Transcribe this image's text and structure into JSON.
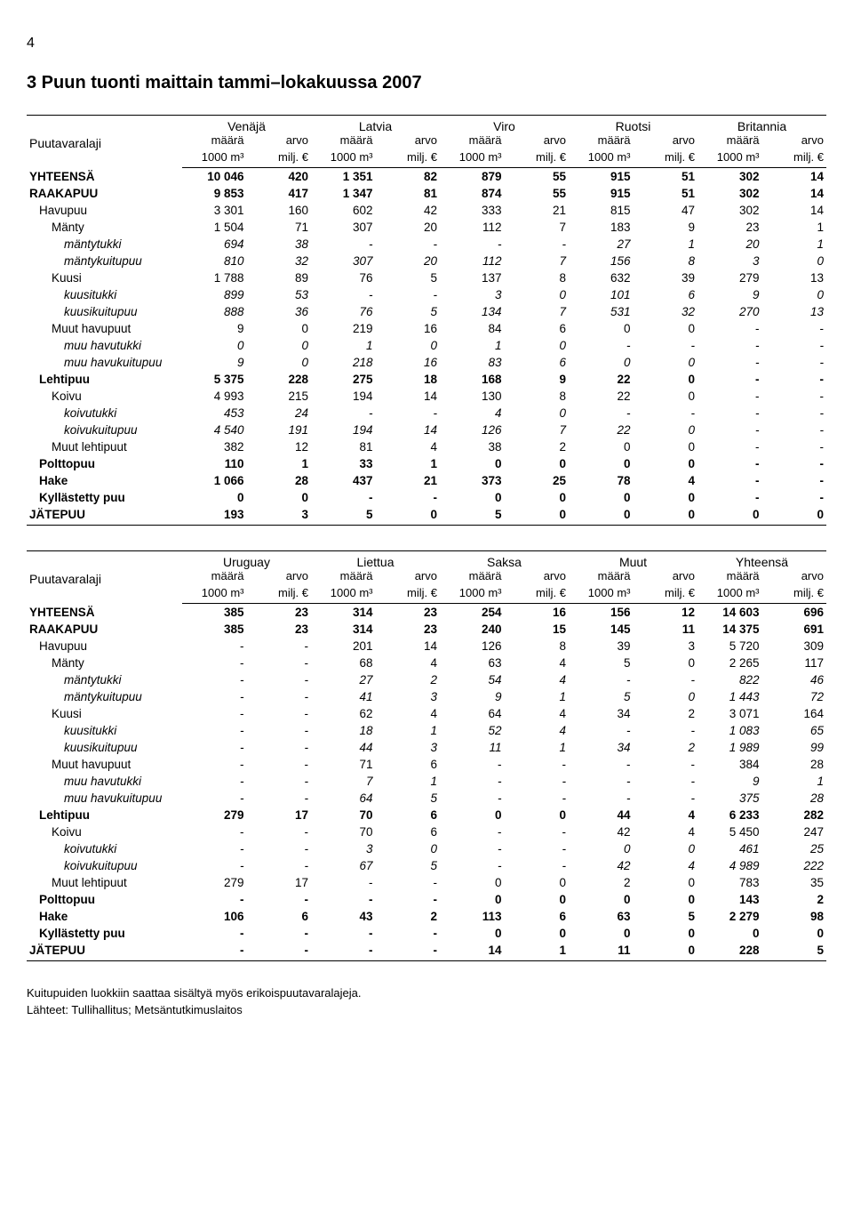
{
  "page_number": "4",
  "title": "3 Puun tuonti maittain tammi–lokakuussa 2007",
  "corner_label": "Puutavaralaji",
  "sub_headers": {
    "maara": "määrä",
    "arvo": "arvo",
    "unit_m3": "1000 m³",
    "unit_milj": "milj. €"
  },
  "tables": [
    {
      "countries": [
        "Venäjä",
        "Latvia",
        "Viro",
        "Ruotsi",
        "Britannia"
      ],
      "rows": [
        {
          "label": "YHTEENSÄ",
          "indent": 0,
          "style": "bold",
          "v": [
            "10 046",
            "420",
            "1 351",
            "82",
            "879",
            "55",
            "915",
            "51",
            "302",
            "14"
          ]
        },
        {
          "label": "RAAKAPUU",
          "indent": 0,
          "style": "bold",
          "v": [
            "9 853",
            "417",
            "1 347",
            "81",
            "874",
            "55",
            "915",
            "51",
            "302",
            "14"
          ]
        },
        {
          "label": "Havupuu",
          "indent": 1,
          "style": "",
          "v": [
            "3 301",
            "160",
            "602",
            "42",
            "333",
            "21",
            "815",
            "47",
            "302",
            "14"
          ]
        },
        {
          "label": "Mänty",
          "indent": 2,
          "style": "",
          "v": [
            "1 504",
            "71",
            "307",
            "20",
            "112",
            "7",
            "183",
            "9",
            "23",
            "1"
          ]
        },
        {
          "label": "mäntytukki",
          "indent": 3,
          "style": "italic",
          "v": [
            "694",
            "38",
            "-",
            "-",
            "-",
            "-",
            "27",
            "1",
            "20",
            "1"
          ]
        },
        {
          "label": "mäntykuitupuu",
          "indent": 3,
          "style": "italic",
          "v": [
            "810",
            "32",
            "307",
            "20",
            "112",
            "7",
            "156",
            "8",
            "3",
            "0"
          ]
        },
        {
          "label": "Kuusi",
          "indent": 2,
          "style": "",
          "v": [
            "1 788",
            "89",
            "76",
            "5",
            "137",
            "8",
            "632",
            "39",
            "279",
            "13"
          ]
        },
        {
          "label": "kuusitukki",
          "indent": 3,
          "style": "italic",
          "v": [
            "899",
            "53",
            "-",
            "-",
            "3",
            "0",
            "101",
            "6",
            "9",
            "0"
          ]
        },
        {
          "label": "kuusikuitupuu",
          "indent": 3,
          "style": "italic",
          "v": [
            "888",
            "36",
            "76",
            "5",
            "134",
            "7",
            "531",
            "32",
            "270",
            "13"
          ]
        },
        {
          "label": "Muut havupuut",
          "indent": 2,
          "style": "",
          "v": [
            "9",
            "0",
            "219",
            "16",
            "84",
            "6",
            "0",
            "0",
            "-",
            "-"
          ]
        },
        {
          "label": "muu havutukki",
          "indent": 3,
          "style": "italic",
          "v": [
            "0",
            "0",
            "1",
            "0",
            "1",
            "0",
            "-",
            "-",
            "-",
            "-"
          ]
        },
        {
          "label": "muu havukuitupuu",
          "indent": 3,
          "style": "italic",
          "v": [
            "9",
            "0",
            "218",
            "16",
            "83",
            "6",
            "0",
            "0",
            "-",
            "-"
          ]
        },
        {
          "label": "Lehtipuu",
          "indent": 1,
          "style": "bold",
          "v": [
            "5 375",
            "228",
            "275",
            "18",
            "168",
            "9",
            "22",
            "0",
            "-",
            "-"
          ]
        },
        {
          "label": "Koivu",
          "indent": 2,
          "style": "",
          "v": [
            "4 993",
            "215",
            "194",
            "14",
            "130",
            "8",
            "22",
            "0",
            "-",
            "-"
          ]
        },
        {
          "label": "koivutukki",
          "indent": 3,
          "style": "italic",
          "v": [
            "453",
            "24",
            "-",
            "-",
            "4",
            "0",
            "-",
            "-",
            "-",
            "-"
          ]
        },
        {
          "label": "koivukuitupuu",
          "indent": 3,
          "style": "italic",
          "v": [
            "4 540",
            "191",
            "194",
            "14",
            "126",
            "7",
            "22",
            "0",
            "-",
            "-"
          ]
        },
        {
          "label": "Muut lehtipuut",
          "indent": 2,
          "style": "",
          "v": [
            "382",
            "12",
            "81",
            "4",
            "38",
            "2",
            "0",
            "0",
            "-",
            "-"
          ]
        },
        {
          "label": "Polttopuu",
          "indent": 1,
          "style": "bold",
          "v": [
            "110",
            "1",
            "33",
            "1",
            "0",
            "0",
            "0",
            "0",
            "-",
            "-"
          ]
        },
        {
          "label": "Hake",
          "indent": 1,
          "style": "bold",
          "v": [
            "1 066",
            "28",
            "437",
            "21",
            "373",
            "25",
            "78",
            "4",
            "-",
            "-"
          ]
        },
        {
          "label": "Kyllästetty puu",
          "indent": 1,
          "style": "bold",
          "v": [
            "0",
            "0",
            "-",
            "-",
            "0",
            "0",
            "0",
            "0",
            "-",
            "-"
          ]
        },
        {
          "label": "JÄTEPUU",
          "indent": 0,
          "style": "bold",
          "v": [
            "193",
            "3",
            "5",
            "0",
            "5",
            "0",
            "0",
            "0",
            "0",
            "0"
          ]
        }
      ]
    },
    {
      "countries": [
        "Uruguay",
        "Liettua",
        "Saksa",
        "Muut",
        "Yhteensä"
      ],
      "rows": [
        {
          "label": "YHTEENSÄ",
          "indent": 0,
          "style": "bold",
          "v": [
            "385",
            "23",
            "314",
            "23",
            "254",
            "16",
            "156",
            "12",
            "14 603",
            "696"
          ]
        },
        {
          "label": "RAAKAPUU",
          "indent": 0,
          "style": "bold",
          "v": [
            "385",
            "23",
            "314",
            "23",
            "240",
            "15",
            "145",
            "11",
            "14 375",
            "691"
          ]
        },
        {
          "label": "Havupuu",
          "indent": 1,
          "style": "",
          "v": [
            "-",
            "-",
            "201",
            "14",
            "126",
            "8",
            "39",
            "3",
            "5 720",
            "309"
          ]
        },
        {
          "label": "Mänty",
          "indent": 2,
          "style": "",
          "v": [
            "-",
            "-",
            "68",
            "4",
            "63",
            "4",
            "5",
            "0",
            "2 265",
            "117"
          ]
        },
        {
          "label": "mäntytukki",
          "indent": 3,
          "style": "italic",
          "v": [
            "-",
            "-",
            "27",
            "2",
            "54",
            "4",
            "-",
            "-",
            "822",
            "46"
          ]
        },
        {
          "label": "mäntykuitupuu",
          "indent": 3,
          "style": "italic",
          "v": [
            "-",
            "-",
            "41",
            "3",
            "9",
            "1",
            "5",
            "0",
            "1 443",
            "72"
          ]
        },
        {
          "label": "Kuusi",
          "indent": 2,
          "style": "",
          "v": [
            "-",
            "-",
            "62",
            "4",
            "64",
            "4",
            "34",
            "2",
            "3 071",
            "164"
          ]
        },
        {
          "label": "kuusitukki",
          "indent": 3,
          "style": "italic",
          "v": [
            "-",
            "-",
            "18",
            "1",
            "52",
            "4",
            "-",
            "-",
            "1 083",
            "65"
          ]
        },
        {
          "label": "kuusikuitupuu",
          "indent": 3,
          "style": "italic",
          "v": [
            "-",
            "-",
            "44",
            "3",
            "11",
            "1",
            "34",
            "2",
            "1 989",
            "99"
          ]
        },
        {
          "label": "Muut havupuut",
          "indent": 2,
          "style": "",
          "v": [
            "-",
            "-",
            "71",
            "6",
            "-",
            "-",
            "-",
            "-",
            "384",
            "28"
          ]
        },
        {
          "label": "muu havutukki",
          "indent": 3,
          "style": "italic",
          "v": [
            "-",
            "-",
            "7",
            "1",
            "-",
            "-",
            "-",
            "-",
            "9",
            "1"
          ]
        },
        {
          "label": "muu havukuitupuu",
          "indent": 3,
          "style": "italic",
          "v": [
            "-",
            "-",
            "64",
            "5",
            "-",
            "-",
            "-",
            "-",
            "375",
            "28"
          ]
        },
        {
          "label": "Lehtipuu",
          "indent": 1,
          "style": "bold",
          "v": [
            "279",
            "17",
            "70",
            "6",
            "0",
            "0",
            "44",
            "4",
            "6 233",
            "282"
          ]
        },
        {
          "label": "Koivu",
          "indent": 2,
          "style": "",
          "v": [
            "-",
            "-",
            "70",
            "6",
            "-",
            "-",
            "42",
            "4",
            "5 450",
            "247"
          ]
        },
        {
          "label": "koivutukki",
          "indent": 3,
          "style": "italic",
          "v": [
            "-",
            "-",
            "3",
            "0",
            "-",
            "-",
            "0",
            "0",
            "461",
            "25"
          ]
        },
        {
          "label": "koivukuitupuu",
          "indent": 3,
          "style": "italic",
          "v": [
            "-",
            "-",
            "67",
            "5",
            "-",
            "-",
            "42",
            "4",
            "4 989",
            "222"
          ]
        },
        {
          "label": "Muut lehtipuut",
          "indent": 2,
          "style": "",
          "v": [
            "279",
            "17",
            "-",
            "-",
            "0",
            "0",
            "2",
            "0",
            "783",
            "35"
          ]
        },
        {
          "label": "Polttopuu",
          "indent": 1,
          "style": "bold",
          "v": [
            "-",
            "-",
            "-",
            "-",
            "0",
            "0",
            "0",
            "0",
            "143",
            "2"
          ]
        },
        {
          "label": "Hake",
          "indent": 1,
          "style": "bold",
          "v": [
            "106",
            "6",
            "43",
            "2",
            "113",
            "6",
            "63",
            "5",
            "2 279",
            "98"
          ]
        },
        {
          "label": "Kyllästetty puu",
          "indent": 1,
          "style": "bold",
          "v": [
            "-",
            "-",
            "-",
            "-",
            "0",
            "0",
            "0",
            "0",
            "0",
            "0"
          ]
        },
        {
          "label": "JÄTEPUU",
          "indent": 0,
          "style": "bold",
          "v": [
            "-",
            "-",
            "-",
            "-",
            "14",
            "1",
            "11",
            "0",
            "228",
            "5"
          ]
        }
      ]
    }
  ],
  "footnotes": [
    "Kuitupuiden luokkiin saattaa sisältyä myös erikoispuutavaralajeja.",
    "Lähteet: Tullihallitus; Metsäntutkimuslaitos"
  ]
}
